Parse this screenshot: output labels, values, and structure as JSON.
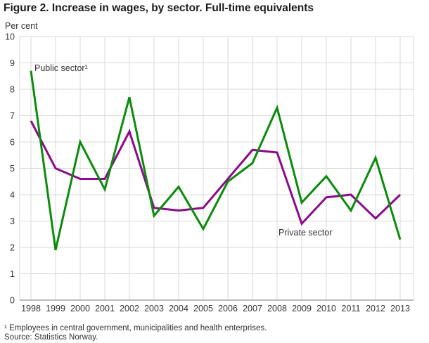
{
  "title": "Figure 2. Increase in wages, by sector. Full-time equivalents",
  "y_axis_title": "Per cent",
  "annotations": {
    "public_label": "Public sector¹",
    "private_label": "Private sector"
  },
  "footnotes": {
    "line1": "¹ Employees in central government, municipalities and health enterprises.",
    "line2": "Source: Statistics Norway."
  },
  "colors": {
    "public": "#0A8C0A",
    "private": "#8C0A8C",
    "grid": "#D9D9D9",
    "axis": "#A6A6A6",
    "text": "#333333"
  },
  "chart_data": {
    "type": "line",
    "title": "Figure 2. Increase in wages, by sector. Full-time equivalents",
    "xlabel": "",
    "ylabel": "Per cent",
    "x": [
      1998,
      1999,
      2000,
      2001,
      2002,
      2003,
      2004,
      2005,
      2006,
      2007,
      2008,
      2009,
      2010,
      2011,
      2012,
      2013
    ],
    "series": [
      {
        "name": "Public sector",
        "color_key": "public",
        "values": [
          8.7,
          1.9,
          6.0,
          4.2,
          7.7,
          3.2,
          4.3,
          2.7,
          4.5,
          5.2,
          7.3,
          3.7,
          4.7,
          3.4,
          5.4,
          2.3
        ]
      },
      {
        "name": "Private sector",
        "color_key": "private",
        "values": [
          6.8,
          5.0,
          4.6,
          4.6,
          6.4,
          3.5,
          3.4,
          3.5,
          4.6,
          5.7,
          5.6,
          2.9,
          3.9,
          4.0,
          3.1,
          4.0
        ]
      }
    ],
    "ylim": [
      0,
      10
    ],
    "ytick_interval": 1,
    "grid": true,
    "legend_position": "inline-annotations"
  }
}
